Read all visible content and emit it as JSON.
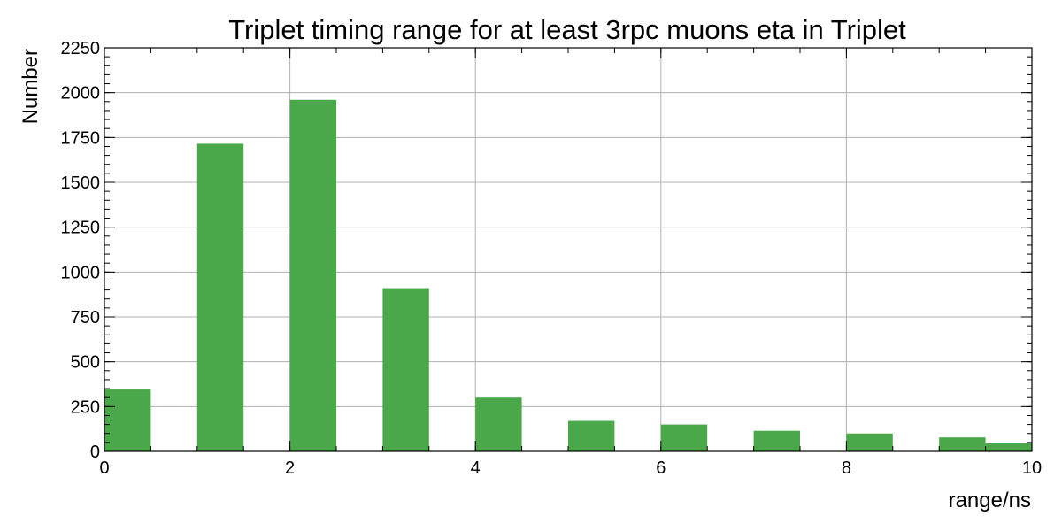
{
  "chart_data": {
    "type": "bar",
    "title": "Triplet timing range for at least 3rpc muons eta in Triplet",
    "xlabel": "range/ns",
    "ylabel": "Number",
    "xlim": [
      0,
      10
    ],
    "ylim": [
      0,
      2250
    ],
    "x_ticks": [
      "0",
      "2",
      "4",
      "6",
      "8",
      "10"
    ],
    "y_ticks": [
      "0",
      "250",
      "500",
      "750",
      "1000",
      "1250",
      "1500",
      "1750",
      "2000",
      "2250"
    ],
    "grid": true,
    "bar_color": "#4aa74a",
    "bins": [
      {
        "x0": 0.0,
        "x1": 0.5,
        "value": 345
      },
      {
        "x0": 1.0,
        "x1": 1.5,
        "value": 1715
      },
      {
        "x0": 2.0,
        "x1": 2.5,
        "value": 1960
      },
      {
        "x0": 3.0,
        "x1": 3.5,
        "value": 910
      },
      {
        "x0": 4.0,
        "x1": 4.5,
        "value": 300
      },
      {
        "x0": 5.0,
        "x1": 5.5,
        "value": 170
      },
      {
        "x0": 6.0,
        "x1": 6.5,
        "value": 150
      },
      {
        "x0": 7.0,
        "x1": 7.5,
        "value": 115
      },
      {
        "x0": 8.0,
        "x1": 8.5,
        "value": 100
      },
      {
        "x0": 9.0,
        "x1": 9.5,
        "value": 78
      },
      {
        "x0": 9.5,
        "x1": 10.0,
        "value": 45
      }
    ]
  }
}
